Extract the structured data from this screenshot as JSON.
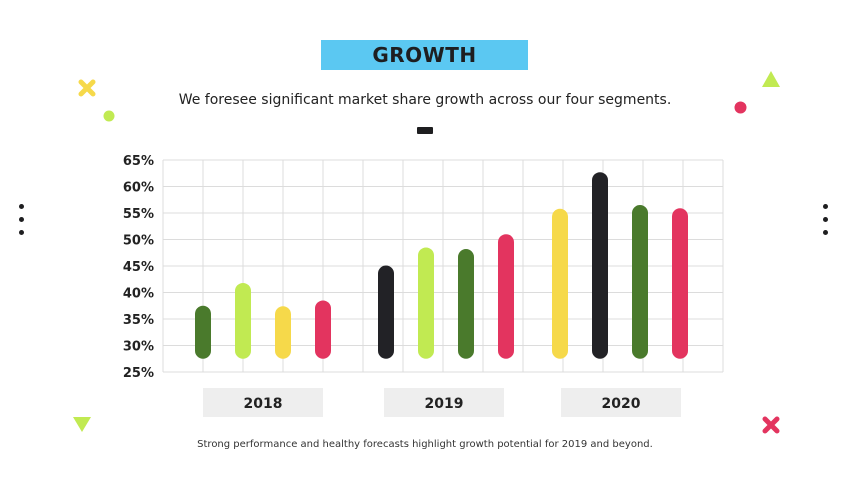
{
  "slide": {
    "title": "GROWTH",
    "subtitle": "We foresee significant market share growth across our four segments.",
    "caption": "Strong performance and healthy forecasts highlight growth potential for 2019 and beyond."
  },
  "colors": {
    "title_bg": "#5bc8f2",
    "dark_green": "#4a7a2c",
    "lime": "#c1ea52",
    "yellow": "#f6d94a",
    "black": "#222226",
    "pink": "#e3345f",
    "label_bg": "#eeeeee"
  },
  "chart_data": {
    "type": "bar",
    "title": "",
    "xlabel": "",
    "ylabel": "",
    "ylim": [
      25,
      65
    ],
    "yticks": [
      25,
      30,
      35,
      40,
      45,
      50,
      55,
      60,
      65
    ],
    "tick_suffix": "%",
    "grid": true,
    "baseline": 27.5,
    "groups": [
      {
        "label": "2018",
        "bars": [
          {
            "value": 37.5,
            "color": "#4a7a2c"
          },
          {
            "value": 41.8,
            "color": "#c1ea52"
          },
          {
            "value": 37.4,
            "color": "#f6d94a"
          },
          {
            "value": 38.5,
            "color": "#e3345f"
          }
        ]
      },
      {
        "label": "2019",
        "bars": [
          {
            "value": 45.1,
            "color": "#222226"
          },
          {
            "value": 48.5,
            "color": "#c1ea52"
          },
          {
            "value": 48.2,
            "color": "#4a7a2c"
          },
          {
            "value": 51.0,
            "color": "#e3345f"
          }
        ]
      },
      {
        "label": "2020",
        "bars": [
          {
            "value": 55.8,
            "color": "#f6d94a"
          },
          {
            "value": 62.7,
            "color": "#222226"
          },
          {
            "value": 56.5,
            "color": "#4a7a2c"
          },
          {
            "value": 55.9,
            "color": "#e3345f"
          }
        ]
      }
    ]
  }
}
